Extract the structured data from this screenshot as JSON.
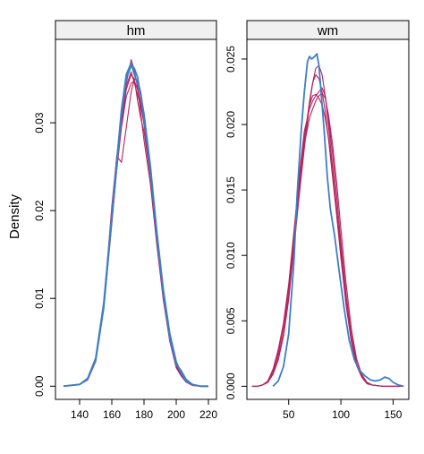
{
  "chart_data": {
    "type": "line",
    "ylabel": "Density",
    "colors": {
      "observed": "#3d7fc5",
      "simulated": "#b5245e"
    },
    "panels": [
      {
        "strip": "hm",
        "xlim": [
          125,
          225
        ],
        "ylim": [
          -0.0015,
          0.0395
        ],
        "xticks": [
          140,
          160,
          180,
          200,
          220
        ],
        "yticks": [
          0.0,
          0.01,
          0.02,
          0.03
        ],
        "ytick_labels": [
          "0.00",
          "0.01",
          "0.02",
          "0.03"
        ],
        "series": [
          {
            "role": "observed",
            "x": [
              130,
              140,
              145,
              150,
              155,
              160,
              163,
              166,
              169,
              172,
              174,
              176,
              178,
              180,
              184,
              188,
              192,
              196,
              200,
              203,
              206,
              210,
              215,
              220
            ],
            "y": [
              0.0,
              0.0002,
              0.0008,
              0.003,
              0.009,
              0.019,
              0.025,
              0.031,
              0.035,
              0.0365,
              0.0362,
              0.0352,
              0.033,
              0.0305,
              0.0245,
              0.017,
              0.0105,
              0.0055,
              0.0025,
              0.0018,
              0.0008,
              0.0002,
              0.0,
              0.0
            ]
          },
          {
            "role": "observed",
            "x": [
              130,
              140,
              145,
              150,
              155,
              160,
              163,
              166,
              169,
              172,
              174,
              176,
              178,
              180,
              184,
              188,
              192,
              196,
              200,
              203,
              206,
              210,
              215,
              220
            ],
            "y": [
              0.0,
              0.0002,
              0.0009,
              0.0032,
              0.0095,
              0.0195,
              0.0255,
              0.0315,
              0.0355,
              0.0368,
              0.0355,
              0.0345,
              0.033,
              0.031,
              0.025,
              0.0175,
              0.011,
              0.006,
              0.0028,
              0.0015,
              0.0006,
              0.0002,
              0.0,
              0.0
            ]
          },
          {
            "role": "simulated",
            "x": [
              130,
              140,
              145,
              150,
              155,
              160,
              163,
              166,
              169,
              172,
              174,
              176,
              178,
              180,
              184,
              188,
              192,
              196,
              200,
              203,
              206,
              210,
              215,
              220
            ],
            "y": [
              0.0,
              0.0002,
              0.0008,
              0.003,
              0.0092,
              0.0205,
              0.026,
              0.031,
              0.0345,
              0.0372,
              0.036,
              0.034,
              0.031,
              0.028,
              0.023,
              0.016,
              0.0098,
              0.0052,
              0.0022,
              0.0012,
              0.0005,
              0.0001,
              0.0,
              0.0
            ]
          },
          {
            "role": "simulated",
            "x": [
              130,
              140,
              145,
              150,
              155,
              160,
              163,
              166,
              169,
              172,
              174,
              176,
              178,
              180,
              184,
              188,
              192,
              196,
              200,
              203,
              206,
              210,
              215,
              220
            ],
            "y": [
              0.0,
              0.0002,
              0.0007,
              0.0028,
              0.0088,
              0.0185,
              0.0245,
              0.0295,
              0.033,
              0.0345,
              0.0348,
              0.0338,
              0.0322,
              0.0298,
              0.024,
              0.0168,
              0.0102,
              0.0055,
              0.0024,
              0.0014,
              0.0006,
              0.0002,
              0.0,
              0.0
            ]
          },
          {
            "role": "simulated",
            "x": [
              130,
              140,
              145,
              150,
              155,
              160,
              163,
              166,
              169,
              172,
              174,
              176,
              178,
              180,
              184,
              188,
              192,
              196,
              200,
              203,
              206,
              210,
              215,
              220
            ],
            "y": [
              0.0,
              0.0002,
              0.0009,
              0.0031,
              0.0093,
              0.019,
              0.0262,
              0.0255,
              0.0295,
              0.0335,
              0.035,
              0.0348,
              0.0335,
              0.031,
              0.0248,
              0.0172,
              0.0105,
              0.0054,
              0.0023,
              0.0013,
              0.0005,
              0.0001,
              0.0,
              0.0
            ]
          },
          {
            "role": "simulated",
            "x": [
              130,
              140,
              145,
              150,
              155,
              160,
              163,
              166,
              169,
              172,
              174,
              176,
              178,
              180,
              184,
              188,
              192,
              196,
              200,
              203,
              206,
              210,
              215,
              220
            ],
            "y": [
              0.0,
              0.0002,
              0.0008,
              0.0029,
              0.009,
              0.0195,
              0.0255,
              0.03,
              0.0338,
              0.0355,
              0.035,
              0.0325,
              0.0305,
              0.029,
              0.0238,
              0.0165,
              0.0099,
              0.0051,
              0.0021,
              0.0012,
              0.0005,
              0.0001,
              0.0,
              0.0
            ]
          },
          {
            "role": "simulated",
            "x": [
              130,
              140,
              145,
              150,
              155,
              160,
              163,
              166,
              169,
              172,
              174,
              176,
              178,
              180,
              184,
              188,
              192,
              196,
              200,
              203,
              206,
              210,
              215,
              220
            ],
            "y": [
              0.0,
              0.0002,
              0.0008,
              0.003,
              0.0091,
              0.0188,
              0.0248,
              0.0305,
              0.0342,
              0.0358,
              0.0345,
              0.0332,
              0.0318,
              0.03,
              0.0245,
              0.017,
              0.0103,
              0.0053,
              0.0022,
              0.0012,
              0.0005,
              0.0001,
              0.0,
              0.0
            ]
          }
        ]
      },
      {
        "strip": "wm",
        "xlim": [
          10,
          165
        ],
        "ylim": [
          -0.001,
          0.0265
        ],
        "xticks": [
          50,
          100,
          150
        ],
        "yticks": [
          0.0,
          0.005,
          0.01,
          0.015,
          0.02,
          0.025
        ],
        "ytick_labels": [
          "0.000",
          "0.005",
          "0.010",
          "0.015",
          "0.020",
          "0.025"
        ],
        "series": [
          {
            "role": "observed",
            "x": [
              35,
              40,
              45,
              50,
              55,
              58,
              62,
              65,
              68,
              70,
              72,
              75,
              77,
              79,
              81,
              84,
              87,
              90,
              94,
              98,
              103,
              108,
              113,
              118,
              123,
              128,
              133,
              138,
              142,
              146,
              150,
              155,
              160
            ],
            "y": [
              0.0,
              0.0004,
              0.0015,
              0.004,
              0.0095,
              0.0145,
              0.0195,
              0.0225,
              0.0248,
              0.0252,
              0.025,
              0.0252,
              0.0254,
              0.0245,
              0.0225,
              0.0195,
              0.016,
              0.0135,
              0.0115,
              0.009,
              0.006,
              0.0035,
              0.002,
              0.0012,
              0.0008,
              0.0005,
              0.0004,
              0.0005,
              0.0007,
              0.0006,
              0.0003,
              0.0001,
              0.0
            ]
          },
          {
            "role": "simulated",
            "x": [
              15,
              20,
              25,
              30,
              35,
              40,
              45,
              50,
              55,
              60,
              65,
              70,
              73,
              76,
              79,
              82,
              85,
              88,
              92,
              96,
              100,
              105,
              110,
              115,
              120,
              125,
              130,
              140,
              150,
              160
            ],
            "y": [
              0.0,
              0.0,
              0.0001,
              0.0003,
              0.0012,
              0.0025,
              0.0045,
              0.0075,
              0.0115,
              0.0155,
              0.019,
              0.0215,
              0.0222,
              0.0223,
              0.022,
              0.0215,
              0.0205,
              0.019,
              0.0165,
              0.0135,
              0.0105,
              0.0068,
              0.0038,
              0.0018,
              0.0008,
              0.0003,
              0.0001,
              0.0,
              0.0,
              0.0
            ]
          },
          {
            "role": "simulated",
            "x": [
              15,
              20,
              25,
              30,
              35,
              40,
              45,
              50,
              55,
              60,
              65,
              70,
              73,
              76,
              79,
              82,
              85,
              88,
              92,
              96,
              100,
              105,
              110,
              115,
              120,
              125,
              130,
              140,
              150,
              160
            ],
            "y": [
              0.0,
              0.0,
              0.0001,
              0.0003,
              0.001,
              0.0022,
              0.004,
              0.007,
              0.011,
              0.015,
              0.0188,
              0.0218,
              0.0232,
              0.0238,
              0.0235,
              0.0225,
              0.021,
              0.019,
              0.016,
              0.013,
              0.0098,
              0.0062,
              0.0035,
              0.0016,
              0.0007,
              0.0002,
              0.0001,
              0.0,
              0.0,
              0.0
            ]
          },
          {
            "role": "simulated",
            "x": [
              15,
              20,
              25,
              30,
              35,
              40,
              45,
              50,
              55,
              60,
              65,
              70,
              73,
              76,
              79,
              82,
              85,
              88,
              92,
              96,
              100,
              105,
              110,
              115,
              120,
              125,
              130,
              140,
              150,
              160
            ],
            "y": [
              0.0,
              0.0,
              0.0001,
              0.0003,
              0.0009,
              0.002,
              0.0038,
              0.0066,
              0.0105,
              0.0145,
              0.0182,
              0.0215,
              0.0232,
              0.0243,
              0.0245,
              0.0238,
              0.0222,
              0.02,
              0.0168,
              0.0135,
              0.01,
              0.0062,
              0.0034,
              0.0016,
              0.0007,
              0.0002,
              0.0001,
              0.0,
              0.0,
              0.0
            ]
          },
          {
            "role": "simulated",
            "x": [
              15,
              20,
              25,
              30,
              35,
              40,
              45,
              50,
              55,
              60,
              65,
              70,
              73,
              76,
              79,
              82,
              85,
              88,
              92,
              96,
              100,
              105,
              110,
              115,
              120,
              125,
              130,
              140,
              150,
              160
            ],
            "y": [
              0.0,
              0.0,
              0.0001,
              0.0004,
              0.0013,
              0.0028,
              0.0048,
              0.0078,
              0.0118,
              0.016,
              0.0195,
              0.0212,
              0.0218,
              0.0222,
              0.0225,
              0.0228,
              0.0222,
              0.0205,
              0.0178,
              0.0145,
              0.011,
              0.007,
              0.0039,
              0.0018,
              0.0007,
              0.0002,
              0.0001,
              0.0,
              0.0,
              0.0
            ]
          },
          {
            "role": "simulated",
            "x": [
              15,
              20,
              25,
              30,
              35,
              40,
              45,
              50,
              55,
              60,
              65,
              70,
              73,
              76,
              79,
              82,
              85,
              88,
              92,
              96,
              100,
              105,
              110,
              115,
              120,
              125,
              130,
              140,
              150,
              160
            ],
            "y": [
              0.0,
              0.0,
              0.0001,
              0.0004,
              0.0012,
              0.0026,
              0.0046,
              0.0076,
              0.0114,
              0.0152,
              0.0185,
              0.0205,
              0.0212,
              0.0218,
              0.0222,
              0.0224,
              0.022,
              0.0208,
              0.0185,
              0.0155,
              0.012,
              0.0078,
              0.0044,
              0.0021,
              0.0009,
              0.0003,
              0.0001,
              0.0,
              0.0,
              0.0
            ]
          }
        ]
      }
    ]
  }
}
